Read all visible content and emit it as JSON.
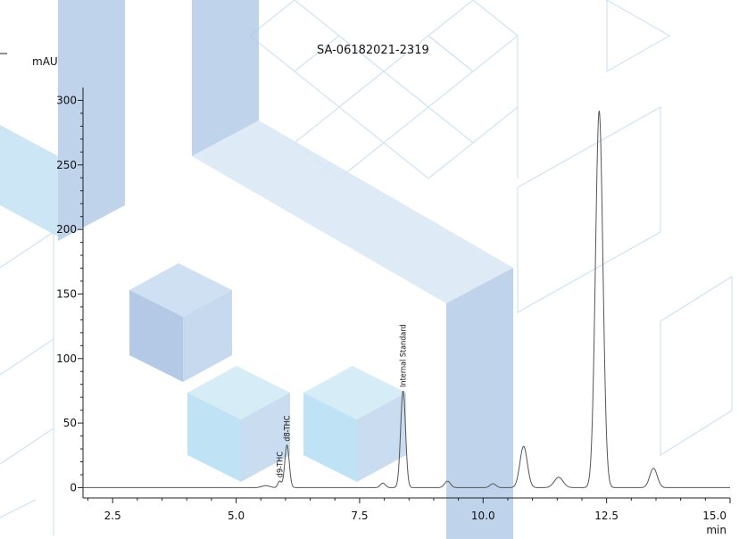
{
  "sample_id": "SA-06182021-2319",
  "colors": {
    "trace": "#555555",
    "axis": "#222222",
    "watermark_blue": "#a9c4e4",
    "watermark_light": "#bfe0f2"
  },
  "chart_data": {
    "type": "line",
    "title": "SA-06182021-2319",
    "xlabel": "min",
    "ylabel": "mAU",
    "xlim": [
      1.9,
      15.0
    ],
    "ylim": [
      -8,
      310
    ],
    "x_ticks": [
      "2.5",
      "5.0",
      "7.5",
      "10.0",
      "12.5",
      "15.0"
    ],
    "y_ticks": [
      "0",
      "50",
      "100",
      "150",
      "200",
      "250",
      "300"
    ],
    "grid": false,
    "series": [
      {
        "baseline": 0,
        "peaks": [
          {
            "rt": 5.6,
            "height": 1.5,
            "width": 0.08
          },
          {
            "rt": 5.88,
            "height": 5,
            "width": 0.035
          },
          {
            "rt": 6.03,
            "height": 33,
            "width": 0.045
          },
          {
            "rt": 7.97,
            "height": 3.5,
            "width": 0.05
          },
          {
            "rt": 8.38,
            "height": 75,
            "width": 0.05
          },
          {
            "rt": 9.28,
            "height": 5,
            "width": 0.06
          },
          {
            "rt": 10.2,
            "height": 3,
            "width": 0.06
          },
          {
            "rt": 10.82,
            "height": 32,
            "width": 0.075
          },
          {
            "rt": 11.53,
            "height": 8,
            "width": 0.09
          },
          {
            "rt": 12.35,
            "height": 292,
            "width": 0.075
          },
          {
            "rt": 13.45,
            "height": 15,
            "width": 0.075
          }
        ]
      }
    ],
    "annotations": [
      {
        "text": "d9-THC",
        "rt": 5.88,
        "y": 5
      },
      {
        "text": "d8-THC",
        "rt": 6.03,
        "y": 33
      },
      {
        "text": "Internal Standard",
        "rt": 8.38,
        "y": 75
      }
    ]
  }
}
